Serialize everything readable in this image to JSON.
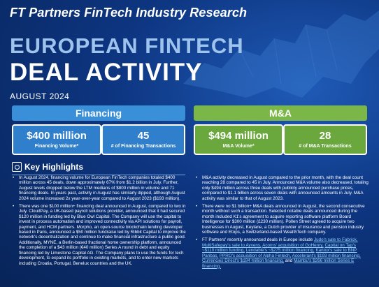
{
  "header": {
    "research_title": "FT Partners FinTech Industry Research",
    "title_line1": "EUROPEAN FINTECH",
    "title_line2": "DEAL ACTIVITY",
    "date": "AUGUST 2024"
  },
  "financing": {
    "header": "Financing",
    "volume_value": "$400 million",
    "volume_label": "Financing Volume*",
    "count_value": "45",
    "count_label": "# of Financing Transactions"
  },
  "ma": {
    "header": "M&A",
    "volume_value": "$494 million",
    "volume_label": "M&A Volume*",
    "count_value": "28",
    "count_label": "# of M&A Transactions"
  },
  "key_highlights": {
    "title": "Key Highlights",
    "left": [
      "In August 2024, financing volume for European FinTech companies totaled $400 million across 45 deals, down approximately 67% from $1.2 billion in July. Further, August levels dropped below the LTM medians of $800 million in volume and 71 financing deals. In years past, activity in August has similarly dipped, although August 2024 volume increased 2x year-over-year compared to August 2023 ($193 million).",
      "There was one $100 million+ financing deal announced in August, compared to two in July. CloudPay, a UK-based payroll solutions provider, announced that it had secured $120 million in funding led by Blue Owl Capital. The Company will use the capital to invest in process automation and improved connectivity via API solutions for payroll, payment, and HCM partners. Morpho, an open-source blockchain lending developer based in Paris, announced a $50 million fundraise led by Ribbit Capital to improve the network's decentralization and continue to make financial infrastructure a public good. Additionally, MYNE, a Berlin-based fractional home ownership platform, announced the completion of a $43 million (€40 million) Series A round in debt and equity financing led by Limestone Capital AG. The Company plans to use the funds for tech development, to expand its portfolio in existing markets, and to enter new markets including Croatia, Portugal, Benelux countries and the UK."
    ],
    "right": [
      "M&A activity decreased in August compared to the prior month, with the deal count reaching 28 compared to 45 in July. Announced M&A volume also decreased, totaling only $494 million across three deals with publicly announced purchase prices, compared to $1.1 billion across seven deals with announced amounts in July. M&A activity was similar to that of August 2023.",
      "There were no $1 billion+ M&A deals announced in August, the second consecutive month without such a transaction. Selected notable deals announced during the month included K1's agreement to acquire reporting software platform Board Intelligence for $300 million (£230 million). Pollen Street agreed to acquire two businesses in August, Keylane, a Dutch provider of insurance and pension industry software and Etops, a Switzerland-based WealthTech company."
    ],
    "right_last_intro": "FT Partners' recently announced deals in Europe include ",
    "right_last_links": [
      "Judo's sale to Fabrick,",
      "MultiSafepay's sale to Ayvens,",
      "Acorns' acquisition of GoHenry,",
      "Capital on Tap's ~$110 million funding,",
      "Lendable's ~$275 million financing,",
      "Kantox's sale to BNP Paribas,",
      "PPRO's acquisition of Alpha Fintech,",
      "Accelerant's $193 million financing,",
      "Currencies Direct's $184 million financing,"
    ],
    "right_last_and": "and ",
    "right_last_final_link": "Mambu's $266 million Series E financing."
  }
}
